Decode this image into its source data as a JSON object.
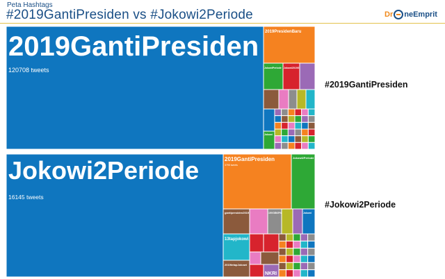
{
  "header": {
    "subtitle": "Peta Hashtags",
    "title": "#2019GantiPresiden vs #Jokowi2Periode",
    "logo_left": "Dr",
    "logo_right": "neEmprit"
  },
  "side_labels": [
    "#2019GantiPresiden",
    "#Jokowi2Periode"
  ],
  "colors": {
    "blue": "#0f76bf",
    "orange": "#f58220",
    "green": "#2ea836",
    "red": "#d7232d",
    "purple": "#9b6ab6",
    "brown": "#8b5a3c",
    "pink": "#e97cc2",
    "gray": "#8d8d8d",
    "olive": "#b7b827",
    "cyan": "#22b6c9"
  },
  "chart_data": [
    {
      "type": "treemap",
      "title": "#2019GantiPresiden",
      "main": {
        "label": "2019GantiPresiden",
        "value_text": "120708 tweets",
        "value": 120708
      },
      "labeled_cells": [
        "2019PresidenBaru",
        "JokowiPeriode",
        "Jokowi2019GP",
        "Jokowi"
      ]
    },
    {
      "type": "treemap",
      "title": "#Jokowi2Periode",
      "main": {
        "label": "Jokowi2Periode",
        "value_text": "16145 tweets",
        "value": 16145
      },
      "labeled_cells": [
        "2019GantiPresiden",
        "Jokowi2Periode",
        "gantipresiden2019",
        "19VGBKPN",
        "Jokowi",
        "13tapjokowi",
        "2019tetapJokowi",
        "NKRI"
      ],
      "cell_notes": [
        "3795 tweets"
      ]
    }
  ]
}
